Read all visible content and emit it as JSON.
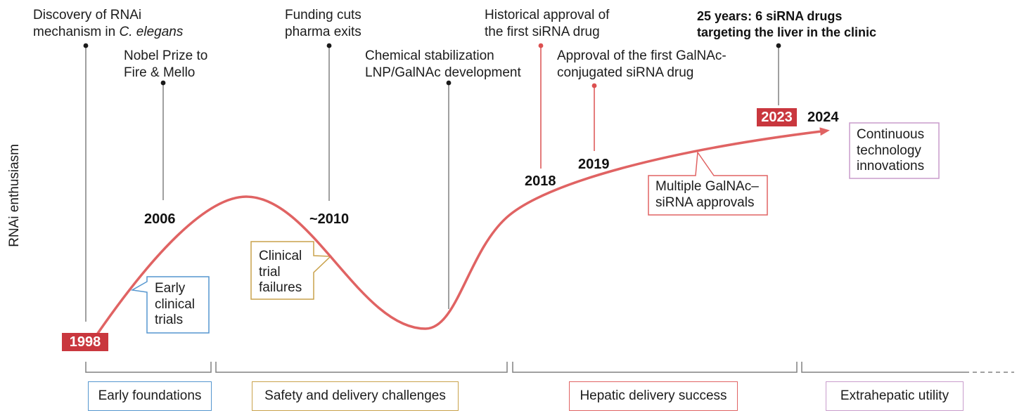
{
  "axis": {
    "y_label": "RNAi enthusiasm"
  },
  "milestones": {
    "discovery": {
      "line1": "Discovery of RNAi",
      "line2": "mechanism in",
      "line2_italic": "C. elegans"
    },
    "nobel": {
      "line1": "Nobel Prize to",
      "line2": "Fire & Mello",
      "year": "2006"
    },
    "funding": {
      "line1": "Funding cuts",
      "line2": "pharma exits",
      "year": "~2010"
    },
    "chemistry": {
      "line1": "Chemical stabilization",
      "line2": "LNP/GalNAc development"
    },
    "first_sirna": {
      "line1": "Historical approval of",
      "line2": "the first siRNA drug",
      "year": "2018"
    },
    "first_galnac": {
      "line1": "Approval of the first GalNAc-",
      "line2": "conjugated siRNA drug",
      "year": "2019"
    },
    "liver_drugs": {
      "line1": "25 years: 6 siRNA drugs",
      "line2": "targeting the liver in the clinic",
      "year": "2023"
    }
  },
  "timeline": {
    "start_year": "1998",
    "end_year": "2024"
  },
  "callouts": {
    "early_trials": [
      "Early",
      "clinical",
      "trials"
    ],
    "trial_failures": [
      "Clinical",
      "trial",
      "failures"
    ],
    "galnac_approvals": [
      "Multiple GalNAc–",
      "siRNA approvals"
    ],
    "innovations": [
      "Continuous",
      "technology",
      "innovations"
    ]
  },
  "phases": [
    "Early foundations",
    "Safety and delivery challenges",
    "Hepatic delivery success",
    "Extrahepatic utility"
  ],
  "colors": {
    "curve": "#e06363",
    "year_box": "#c9373e",
    "pin_gray": "#808080",
    "pin_red": "#dc5050",
    "early_foundations": "#5596cf",
    "safety_challenges": "#c9a24b",
    "hepatic_success": "#e06363",
    "extrahepatic_utility": "#c99ccc"
  }
}
